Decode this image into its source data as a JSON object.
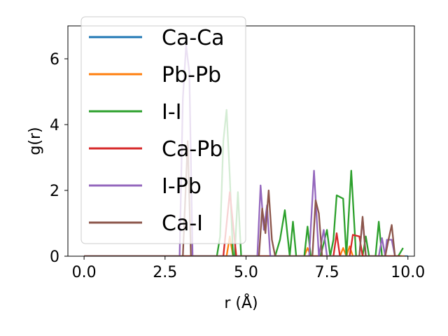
{
  "chart_data": {
    "type": "line",
    "xlabel": "r (Å)",
    "ylabel": "g(r)",
    "xlim": [
      -0.5,
      10.2
    ],
    "ylim": [
      0,
      7.0
    ],
    "xticks": [
      0.0,
      2.5,
      5.0,
      7.5,
      10.0
    ],
    "xtick_labels": [
      "0.0",
      "2.5",
      "5.0",
      "7.5",
      "10.0"
    ],
    "yticks": [
      0,
      2,
      4,
      6
    ],
    "ytick_labels": [
      "0",
      "2",
      "4",
      "6"
    ],
    "grid": false,
    "legend_position": "top-left",
    "series": [
      {
        "name": "Ca-Ca",
        "color": "#1f77b4",
        "points": [
          [
            0,
            0
          ],
          [
            5.0,
            0
          ],
          [
            5.35,
            0
          ],
          [
            5.5,
            0
          ],
          [
            5.65,
            0
          ],
          [
            5.8,
            0
          ],
          [
            10,
            0
          ]
        ]
      },
      {
        "name": "Pb-Pb",
        "color": "#ff7f0e",
        "points": [
          [
            0,
            0
          ],
          [
            4.4,
            0
          ],
          [
            4.5,
            0.6
          ],
          [
            4.6,
            0
          ],
          [
            6.8,
            0
          ],
          [
            6.9,
            0.25
          ],
          [
            7.0,
            0
          ],
          [
            7.9,
            0
          ],
          [
            8.0,
            0.25
          ],
          [
            8.1,
            0
          ],
          [
            8.2,
            0.3
          ],
          [
            8.3,
            0
          ],
          [
            9.9,
            0
          ]
        ]
      },
      {
        "name": "I-I",
        "color": "#2ca02c",
        "points": [
          [
            0,
            0
          ],
          [
            4.1,
            0
          ],
          [
            4.2,
            0.6
          ],
          [
            4.3,
            3.5
          ],
          [
            4.4,
            4.45
          ],
          [
            4.5,
            2.4
          ],
          [
            4.6,
            0
          ],
          [
            4.65,
            0
          ],
          [
            4.75,
            1.95
          ],
          [
            4.85,
            0
          ],
          [
            5.9,
            0
          ],
          [
            6.05,
            0.5
          ],
          [
            6.2,
            1.4
          ],
          [
            6.35,
            0
          ],
          [
            6.45,
            1.05
          ],
          [
            6.55,
            0
          ],
          [
            6.8,
            0
          ],
          [
            6.9,
            0.9
          ],
          [
            7.0,
            0
          ],
          [
            7.3,
            0
          ],
          [
            7.5,
            0.8
          ],
          [
            7.6,
            0
          ],
          [
            7.7,
            0.5
          ],
          [
            7.8,
            1.85
          ],
          [
            8.0,
            1.75
          ],
          [
            8.1,
            0
          ],
          [
            8.25,
            2.6
          ],
          [
            8.4,
            0
          ],
          [
            8.6,
            0
          ],
          [
            8.7,
            0.6
          ],
          [
            8.8,
            0
          ],
          [
            9.0,
            0
          ],
          [
            9.1,
            1.05
          ],
          [
            9.2,
            0
          ],
          [
            9.7,
            0
          ],
          [
            9.85,
            0.25
          ]
        ]
      },
      {
        "name": "Ca-Pb",
        "color": "#d62728",
        "points": [
          [
            0,
            0
          ],
          [
            4.3,
            0
          ],
          [
            4.5,
            1.95
          ],
          [
            4.7,
            0
          ],
          [
            7.7,
            0
          ],
          [
            7.8,
            0.7
          ],
          [
            7.9,
            0
          ],
          [
            8.2,
            0
          ],
          [
            8.3,
            0.65
          ],
          [
            8.5,
            0.6
          ],
          [
            8.6,
            0
          ],
          [
            9.8,
            0
          ]
        ]
      },
      {
        "name": "I-Pb",
        "color": "#9467bd",
        "points": [
          [
            0,
            0
          ],
          [
            2.95,
            0
          ],
          [
            3.05,
            4.8
          ],
          [
            3.15,
            6.4
          ],
          [
            3.25,
            5.6
          ],
          [
            3.35,
            0
          ],
          [
            5.35,
            0
          ],
          [
            5.45,
            2.15
          ],
          [
            5.55,
            0.8
          ],
          [
            5.65,
            1.55
          ],
          [
            5.75,
            0
          ],
          [
            6.95,
            0
          ],
          [
            7.1,
            2.6
          ],
          [
            7.25,
            0
          ],
          [
            7.4,
            0.8
          ],
          [
            7.5,
            0
          ],
          [
            8.5,
            0
          ],
          [
            8.6,
            1.15
          ],
          [
            8.7,
            0
          ],
          [
            9.1,
            0
          ],
          [
            9.2,
            0.55
          ],
          [
            9.3,
            0
          ],
          [
            9.35,
            0.5
          ],
          [
            9.5,
            0.5
          ],
          [
            9.6,
            0
          ]
        ]
      },
      {
        "name": "Ca-I",
        "color": "#8c564b",
        "points": [
          [
            0,
            0
          ],
          [
            3.05,
            0
          ],
          [
            3.2,
            3.5
          ],
          [
            3.3,
            0
          ],
          [
            5.4,
            0
          ],
          [
            5.5,
            1.45
          ],
          [
            5.6,
            0.7
          ],
          [
            5.7,
            2.0
          ],
          [
            5.8,
            0.5
          ],
          [
            5.9,
            0
          ],
          [
            7.05,
            0
          ],
          [
            7.15,
            1.7
          ],
          [
            7.25,
            1.3
          ],
          [
            7.35,
            0
          ],
          [
            8.5,
            0
          ],
          [
            8.6,
            1.2
          ],
          [
            8.7,
            0
          ],
          [
            9.3,
            0
          ],
          [
            9.4,
            0.5
          ],
          [
            9.5,
            0.95
          ],
          [
            9.6,
            0
          ]
        ]
      }
    ]
  }
}
